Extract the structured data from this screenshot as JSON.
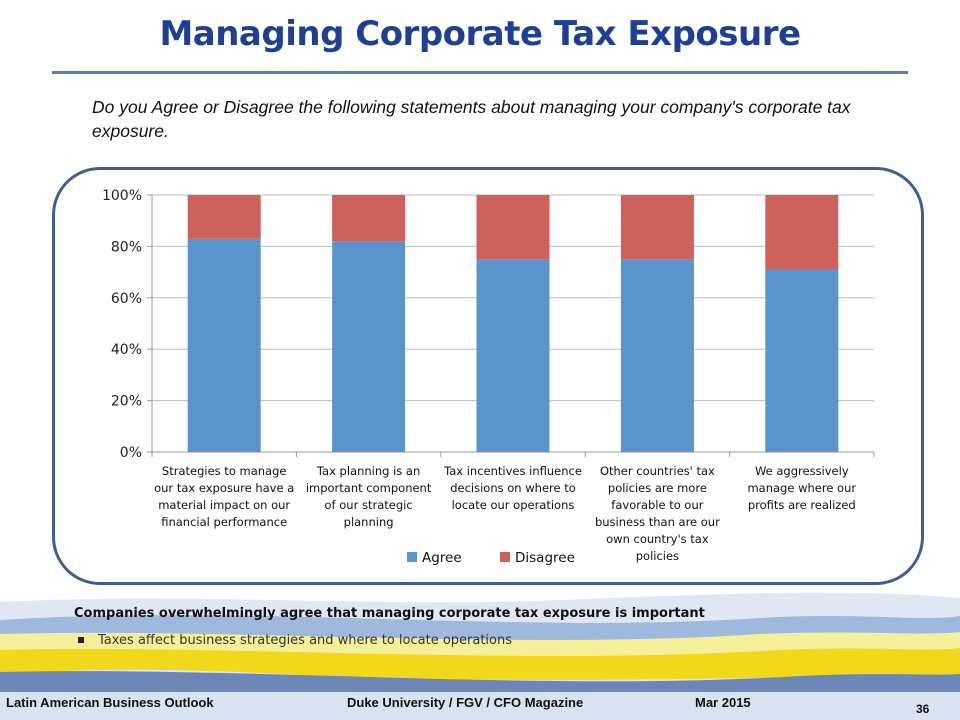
{
  "slide": {
    "title": "Managing Corporate Tax Exposure",
    "question": "Do you Agree or Disagree the following statements about managing your company's corporate tax exposure.",
    "summary": "Companies overwhelmingly agree that managing corporate tax exposure is important",
    "bullet": "Taxes affect business strategies and where to locate operations"
  },
  "footer": {
    "left": "Latin American Business Outlook",
    "center": "Duke University / FGV / CFO Magazine",
    "date": "Mar 2015",
    "page": "36"
  },
  "colors": {
    "title": "#1f3f94",
    "agree": "#5b93cc",
    "disagree": "#cd625d"
  },
  "chart_data": {
    "type": "bar",
    "stacked": true,
    "categories": [
      [
        "Strategies to manage",
        "our tax exposure have a",
        "material impact on our",
        "financial performance"
      ],
      [
        "Tax planning is an",
        "important component",
        "of our strategic",
        "planning"
      ],
      [
        "Tax incentives influence",
        "decisions on where to",
        "locate our operations"
      ],
      [
        "Other countries' tax",
        "policies are more",
        "favorable to our",
        "business than are our",
        "own country's tax",
        "policies"
      ],
      [
        "We aggressively",
        "manage where our",
        "profits are realized"
      ]
    ],
    "series": [
      {
        "name": "Agree",
        "values": [
          83,
          82,
          75,
          75,
          71
        ]
      },
      {
        "name": "Disagree",
        "values": [
          17,
          18,
          25,
          25,
          29
        ]
      }
    ],
    "yticks": [
      "0%",
      "20%",
      "40%",
      "60%",
      "80%",
      "100%"
    ],
    "ylim": [
      0,
      100
    ],
    "legend": "bottom-center",
    "grid": true
  }
}
